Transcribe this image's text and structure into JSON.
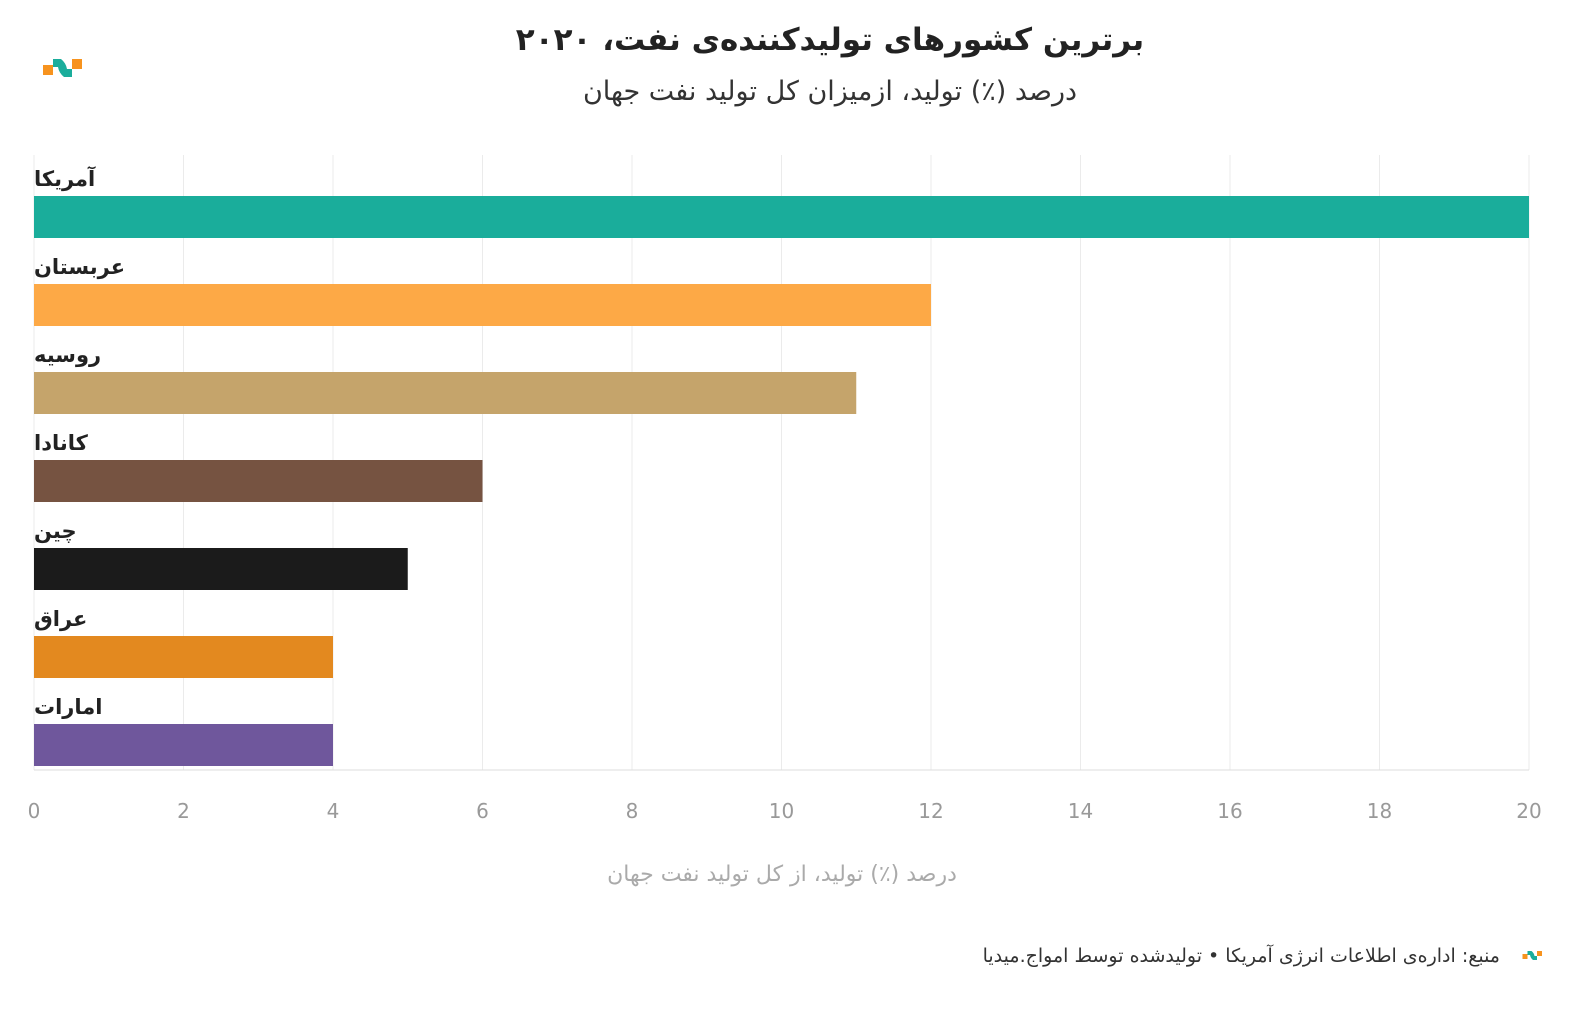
{
  "chart_data": {
    "type": "bar",
    "orientation": "horizontal",
    "title": "برترین کشورهای تولیدکننده‌ی نفت، ۲۰۲۰",
    "subtitle": "درصد (٪) تولید، ازمیزان کل تولید نفت جهان",
    "xlabel": "درصد (٪) تولید، از کل تولید نفت جهان",
    "ylabel": "",
    "xlim": [
      0,
      20
    ],
    "xticks": [
      0,
      2,
      4,
      6,
      8,
      10,
      12,
      14,
      16,
      18,
      20
    ],
    "grid": true,
    "categories": [
      "آمریکا",
      "عربستان",
      "روسیه",
      "کانادا",
      "چین",
      "عراق",
      "امارات"
    ],
    "values": [
      20,
      12,
      11,
      6,
      5,
      4,
      4
    ],
    "colors": [
      "#1aad9b",
      "#fda946",
      "#c5a46b",
      "#765341",
      "#1b1b1b",
      "#e3891f",
      "#6f579c"
    ]
  },
  "footer": {
    "source": "منبع: اداره‌ی اطلاعات انرژی آمریکا • تولیدشده توسط امواج.میدیا"
  },
  "brand": {
    "colors": [
      "#f7931e",
      "#1aad9b"
    ]
  }
}
